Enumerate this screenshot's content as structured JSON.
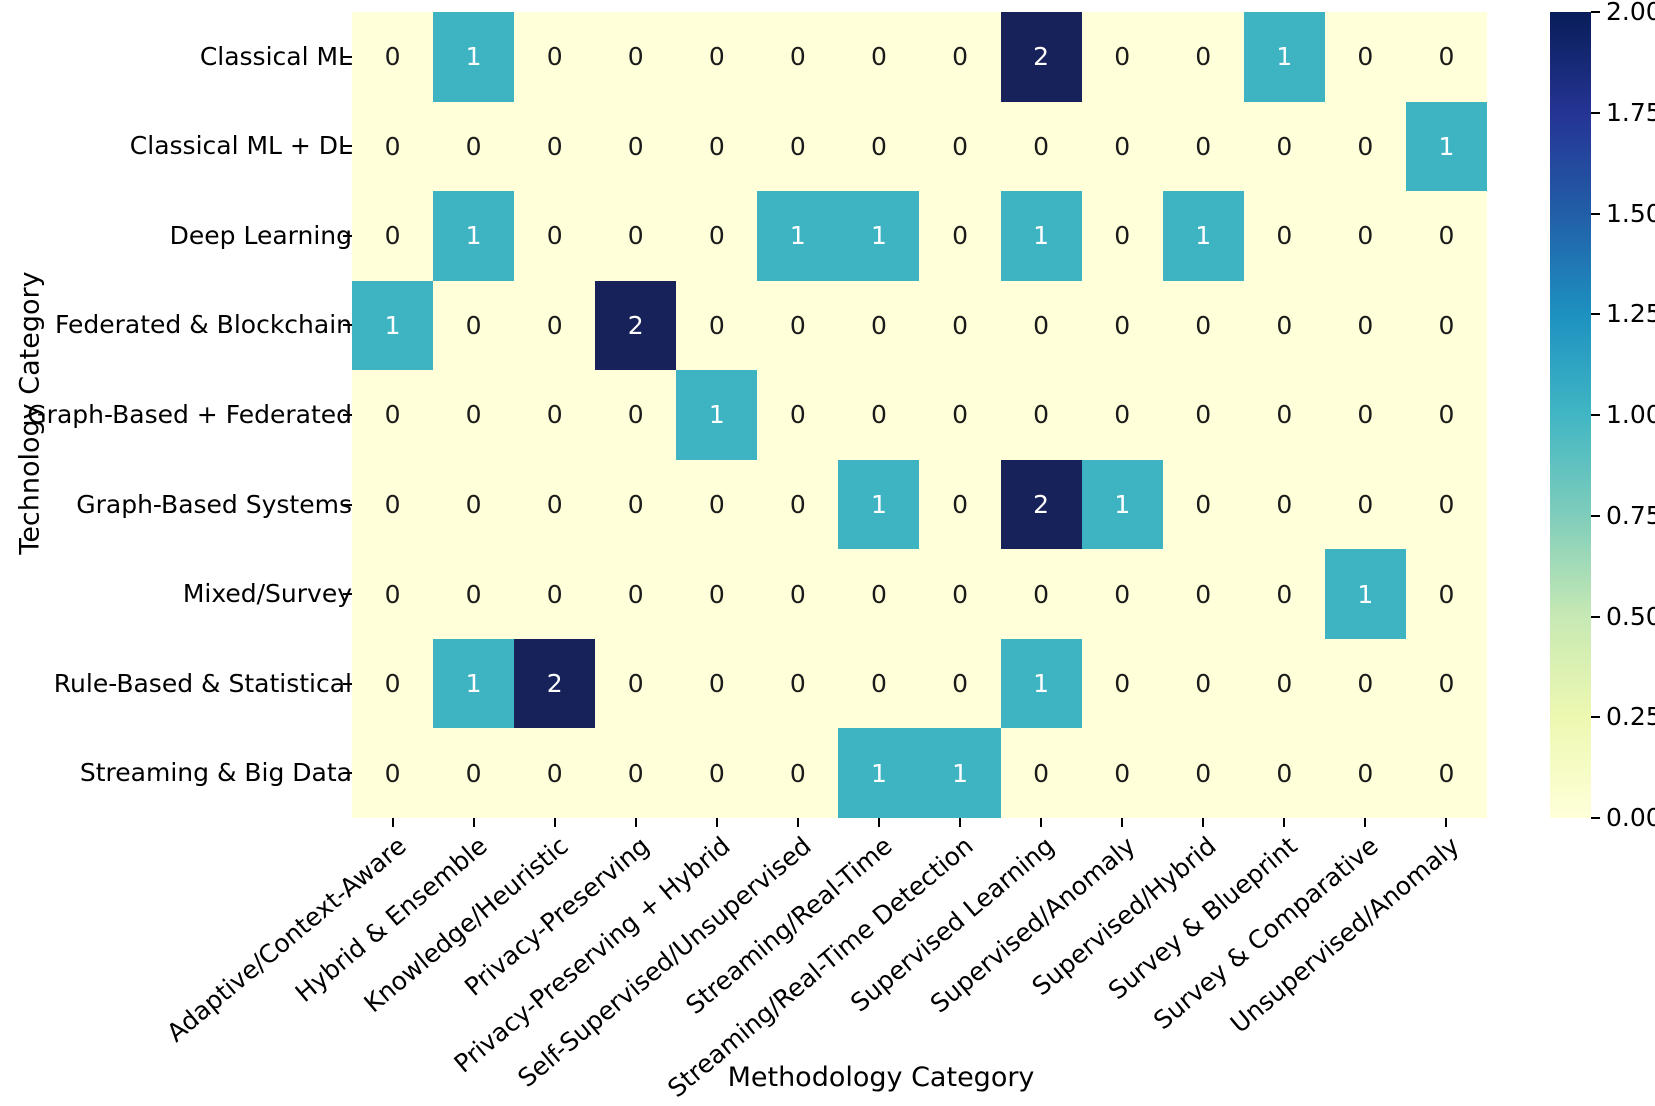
{
  "chart_data": {
    "type": "heatmap",
    "xlabel": "Methodology Category",
    "ylabel": "Technology Category",
    "rows": [
      "Classical ML",
      "Classical ML + DL",
      "Deep Learning",
      "Federated & Blockchain",
      "Graph-Based + Federated",
      "Graph-Based Systems",
      "Mixed/Survey",
      "Rule-Based & Statistical",
      "Streaming & Big Data"
    ],
    "columns": [
      "Adaptive/Context-Aware",
      "Hybrid & Ensemble",
      "Knowledge/Heuristic",
      "Privacy-Preserving",
      "Privacy-Preserving + Hybrid",
      "Self-Supervised/Unsupervised",
      "Streaming/Real-Time",
      "Streaming/Real-Time Detection",
      "Supervised Learning",
      "Supervised/Anomaly",
      "Supervised/Hybrid",
      "Survey & Blueprint",
      "Survey & Comparative",
      "Unsupervised/Anomaly"
    ],
    "values": [
      [
        0,
        1,
        0,
        0,
        0,
        0,
        0,
        0,
        2,
        0,
        0,
        1,
        0,
        0
      ],
      [
        0,
        0,
        0,
        0,
        0,
        0,
        0,
        0,
        0,
        0,
        0,
        0,
        0,
        1
      ],
      [
        0,
        1,
        0,
        0,
        0,
        1,
        1,
        0,
        1,
        0,
        1,
        0,
        0,
        0
      ],
      [
        1,
        0,
        0,
        2,
        0,
        0,
        0,
        0,
        0,
        0,
        0,
        0,
        0,
        0
      ],
      [
        0,
        0,
        0,
        0,
        1,
        0,
        0,
        0,
        0,
        0,
        0,
        0,
        0,
        0
      ],
      [
        0,
        0,
        0,
        0,
        0,
        0,
        1,
        0,
        2,
        1,
        0,
        0,
        0,
        0
      ],
      [
        0,
        0,
        0,
        0,
        0,
        0,
        0,
        0,
        0,
        0,
        0,
        0,
        1,
        0
      ],
      [
        0,
        1,
        2,
        0,
        0,
        0,
        0,
        0,
        1,
        0,
        0,
        0,
        0,
        0
      ],
      [
        0,
        0,
        0,
        0,
        0,
        0,
        1,
        1,
        0,
        0,
        0,
        0,
        0,
        0
      ]
    ],
    "colorbar": {
      "min": 0,
      "max": 2,
      "tick_labels": [
        "2.00",
        "1.75",
        "1.50",
        "1.25",
        "1.00",
        "0.75",
        "0.50",
        "0.25",
        "0.00"
      ],
      "colormap": "YlGnBu"
    }
  },
  "colors": {
    "value_0_cell": "#ffffd9",
    "value_1_cell": "#3eb4c3",
    "value_2_cell": "#17225a",
    "annotation_on_dark": "#ffffff",
    "annotation_on_light": "#1a1a1a"
  }
}
